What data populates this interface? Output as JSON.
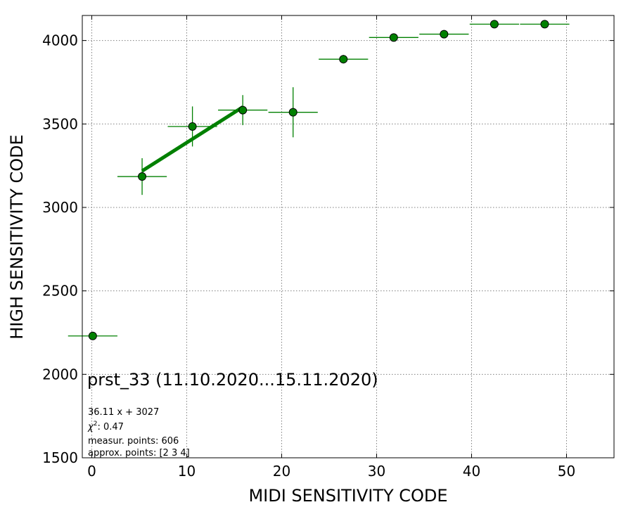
{
  "chart_data": {
    "type": "scatter",
    "xlabel": "MIDI SENSITIVITY CODE",
    "ylabel": "HIGH SENSITIVITY CODE",
    "xlim": [
      -1,
      55
    ],
    "ylim": [
      1500,
      4150
    ],
    "x_ticks": [
      0,
      10,
      20,
      30,
      40,
      50
    ],
    "y_ticks": [
      1500,
      2000,
      2500,
      3000,
      3500,
      4000
    ],
    "grid": true,
    "colors": {
      "marker": "#008000",
      "marker_edge": "#000000",
      "fit_line": "#008000"
    },
    "series": [
      {
        "points": [
          {
            "x": 0.1,
            "y": 2230,
            "xerr": 2.6,
            "yerr": 0
          },
          {
            "x": 5.3,
            "y": 3185,
            "xerr": 2.6,
            "yerr": 110
          },
          {
            "x": 10.6,
            "y": 3485,
            "xerr": 2.6,
            "yerr": 120
          },
          {
            "x": 15.9,
            "y": 3583,
            "xerr": 2.6,
            "yerr": 90
          },
          {
            "x": 21.2,
            "y": 3570,
            "xerr": 2.6,
            "yerr": 150
          },
          {
            "x": 26.5,
            "y": 3888,
            "xerr": 2.6,
            "yerr": 25
          },
          {
            "x": 31.8,
            "y": 4018,
            "xerr": 2.6,
            "yerr": 0
          },
          {
            "x": 37.1,
            "y": 4038,
            "xerr": 2.6,
            "yerr": 0
          },
          {
            "x": 42.4,
            "y": 4098,
            "xerr": 2.6,
            "yerr": 0
          },
          {
            "x": 47.7,
            "y": 4098,
            "xerr": 2.6,
            "yerr": 0
          }
        ]
      }
    ],
    "fit": {
      "x_start": 5.3,
      "x_end": 15.9,
      "slope": 36.11,
      "intercept": 3027
    },
    "annotations": {
      "title": "prst_33 (11.10.2020...15.11.2020)",
      "equation": "36.11 x + 3027",
      "chi2_prefix": "χ",
      "chi2_suffix": ": 0.47",
      "measur_points": "measur. points: 606",
      "approx_points": "approx. points: [2 3 4]"
    }
  }
}
